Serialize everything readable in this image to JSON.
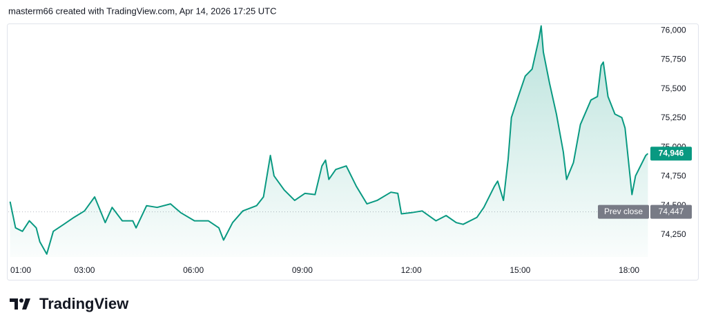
{
  "header": "masterm66 created with TradingView.com, Apr 14, 2026 17:25 UTC",
  "brand": "TradingView",
  "chart_data": {
    "type": "area",
    "color": "#089981",
    "x": [
      0.95,
      1.1,
      1.29,
      1.48,
      1.67,
      1.77,
      1.96,
      2.14,
      2.43,
      2.71,
      3.0,
      3.28,
      3.57,
      3.76,
      4.04,
      4.33,
      4.42,
      4.71,
      5.0,
      5.37,
      5.65,
      6.03,
      6.41,
      6.7,
      6.83,
      7.08,
      7.36,
      7.74,
      7.93,
      8.12,
      8.22,
      8.5,
      8.79,
      9.07,
      9.35,
      9.54,
      9.64,
      9.73,
      9.92,
      10.21,
      10.49,
      10.78,
      11.06,
      11.44,
      11.63,
      11.73,
      12.01,
      12.3,
      12.68,
      12.96,
      13.24,
      13.43,
      13.81,
      14.0,
      14.29,
      14.38,
      14.54,
      14.67,
      14.76,
      14.95,
      15.14,
      15.33,
      15.52,
      15.58,
      15.64,
      15.81,
      16.0,
      16.19,
      16.28,
      16.47,
      16.66,
      16.95,
      17.13,
      17.23,
      17.29,
      17.42,
      17.61,
      17.8,
      17.89,
      18.08,
      18.18,
      18.46,
      18.52
    ],
    "values": [
      74535,
      74310,
      74280,
      74370,
      74310,
      74190,
      74085,
      74280,
      74340,
      74400,
      74455,
      74575,
      74355,
      74485,
      74370,
      74370,
      74310,
      74500,
      74485,
      74515,
      74440,
      74370,
      74370,
      74310,
      74205,
      74355,
      74455,
      74500,
      74575,
      74930,
      74755,
      74635,
      74545,
      74605,
      74595,
      74840,
      74890,
      74725,
      74810,
      74840,
      74665,
      74515,
      74545,
      74615,
      74605,
      74430,
      74440,
      74455,
      74370,
      74415,
      74355,
      74340,
      74400,
      74485,
      74665,
      74710,
      74545,
      74900,
      75255,
      75435,
      75610,
      75670,
      75935,
      76040,
      75815,
      75550,
      75285,
      74960,
      74725,
      74870,
      75195,
      75405,
      75435,
      75700,
      75730,
      75435,
      75285,
      75255,
      75165,
      74595,
      74755,
      74930,
      74946
    ],
    "xlim": [
      0.9,
      18.55
    ],
    "xticks": [
      {
        "value": 1,
        "label": "01:00"
      },
      {
        "value": 3,
        "label": "03:00"
      },
      {
        "value": 6,
        "label": "06:00"
      },
      {
        "value": 9,
        "label": "09:00"
      },
      {
        "value": 12,
        "label": "12:00"
      },
      {
        "value": 15,
        "label": "15:00"
      },
      {
        "value": 18,
        "label": "18:00"
      }
    ],
    "ylim": [
      74060,
      76055
    ],
    "yticks": [
      {
        "value": 74250,
        "label": "74,250"
      },
      {
        "value": 74500,
        "label": "74,500"
      },
      {
        "value": 74750,
        "label": "74,750"
      },
      {
        "value": 75000,
        "label": "75,000"
      },
      {
        "value": 75250,
        "label": "75,250"
      },
      {
        "value": 75500,
        "label": "75,500"
      },
      {
        "value": 75750,
        "label": "75,750"
      },
      {
        "value": 76000,
        "label": "76,000"
      }
    ],
    "prev_close": {
      "name": "Prev close",
      "value": 74447,
      "label": "74,447"
    },
    "last_price": {
      "value": 74946,
      "label": "74,946"
    }
  }
}
